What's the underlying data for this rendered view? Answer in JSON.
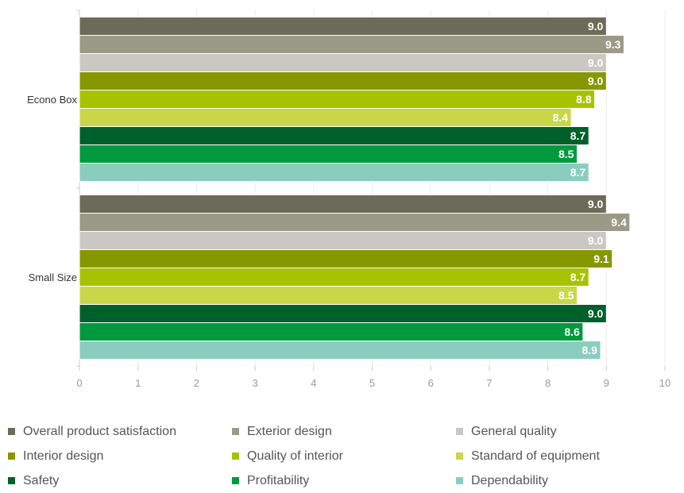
{
  "chart_data": {
    "type": "bar",
    "orientation": "horizontal",
    "categories": [
      "Econo Box",
      "Small Size"
    ],
    "series": [
      {
        "name": "Overall product satisfaction",
        "color": "#6b6b5a",
        "values": [
          9.0,
          9.0
        ],
        "labels": [
          "9.0",
          "9.0"
        ]
      },
      {
        "name": "Exterior design",
        "color": "#9b9a88",
        "values": [
          9.3,
          9.4
        ],
        "labels": [
          "9.3",
          "9.4"
        ]
      },
      {
        "name": "General quality",
        "color": "#cbc8c4",
        "values": [
          9.0,
          9.0
        ],
        "labels": [
          "9.0",
          "9.0"
        ]
      },
      {
        "name": "Interior design",
        "color": "#869800",
        "values": [
          9.0,
          9.1
        ],
        "labels": [
          "9.0",
          "9.1"
        ]
      },
      {
        "name": "Quality of interior",
        "color": "#a7c300",
        "values": [
          8.8,
          8.7
        ],
        "labels": [
          "8.8",
          "8.7"
        ]
      },
      {
        "name": "Standard of equipment",
        "color": "#c9d648",
        "values": [
          8.4,
          8.5
        ],
        "labels": [
          "8.4",
          "8.5"
        ]
      },
      {
        "name": "Safety",
        "color": "#00602a",
        "values": [
          8.7,
          9.0
        ],
        "labels": [
          "8.7",
          "9.0"
        ]
      },
      {
        "name": "Profitability",
        "color": "#009a3e",
        "values": [
          8.5,
          8.6
        ],
        "labels": [
          "8.5",
          "8.6"
        ]
      },
      {
        "name": "Dependability",
        "color": "#8acdbf",
        "values": [
          8.7,
          8.9
        ],
        "labels": [
          "8.7",
          "8.9"
        ]
      }
    ],
    "xlim": [
      0,
      10
    ],
    "x_ticks": [
      "0",
      "1",
      "2",
      "3",
      "4",
      "5",
      "6",
      "7",
      "8",
      "9",
      "10"
    ],
    "grid": true,
    "legend_position": "bottom",
    "title": "",
    "xlabel": "",
    "ylabel": ""
  }
}
